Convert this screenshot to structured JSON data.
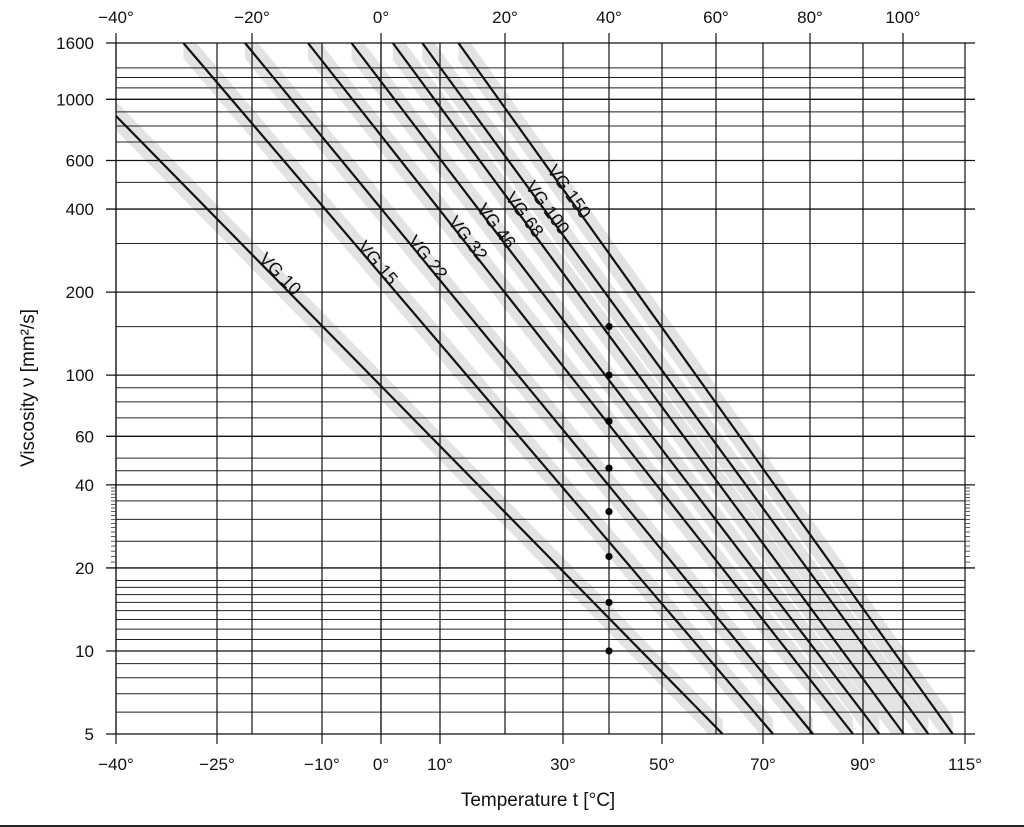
{
  "chart_data": {
    "type": "line",
    "title": "",
    "xlabel": "Temperature t [°C]",
    "ylabel": "Viscosity ν [mm²/s]",
    "y_scale": "log",
    "xlim": [
      -40,
      115
    ],
    "ylim": [
      5,
      1600
    ],
    "grid": true,
    "legend": "labels along lines",
    "x_ticks_bottom": [
      "−40°",
      "−25°",
      "−10°",
      "0°",
      "10°",
      "30°",
      "50°",
      "70°",
      "90°",
      "115°"
    ],
    "x_ticks_top": [
      "−40°",
      "−20°",
      "0°",
      "20°",
      "40°",
      "60°",
      "80°",
      "100°"
    ],
    "y_ticks": [
      "1600",
      "1000",
      "600",
      "400",
      "200",
      "100",
      "60",
      "40",
      "20",
      "10",
      "5"
    ],
    "shaded_bands": "±10% viscosity range of each ISO VG grade",
    "series": [
      {
        "name": "VG 10",
        "kinematic_viscosity_40C": 10,
        "band": [
          9,
          11
        ],
        "x": [
          -40,
          62
        ],
        "y": [
          870,
          5
        ]
      },
      {
        "name": "VG 15",
        "kinematic_viscosity_40C": 15,
        "band": [
          13.5,
          16.5
        ],
        "x": [
          -30,
          72
        ],
        "y": [
          1600,
          5
        ]
      },
      {
        "name": "VG 22",
        "kinematic_viscosity_40C": 22,
        "band": [
          19.8,
          24.2
        ],
        "x": [
          -21,
          80
        ],
        "y": [
          1600,
          5
        ]
      },
      {
        "name": "VG 32",
        "kinematic_viscosity_40C": 32,
        "band": [
          28.8,
          35.2
        ],
        "x": [
          -12,
          88
        ],
        "y": [
          1600,
          5
        ]
      },
      {
        "name": "VG 46",
        "kinematic_viscosity_40C": 46,
        "band": [
          41.4,
          50.6
        ],
        "x": [
          -5,
          94
        ],
        "y": [
          1600,
          5
        ]
      },
      {
        "name": "VG 68",
        "kinematic_viscosity_40C": 68,
        "band": [
          61.2,
          74.8
        ],
        "x": [
          2,
          100
        ],
        "y": [
          1600,
          5
        ]
      },
      {
        "name": "VG 100",
        "kinematic_viscosity_40C": 100,
        "band": [
          90,
          110
        ],
        "x": [
          7,
          106
        ],
        "y": [
          1600,
          5
        ]
      },
      {
        "name": "VG 150",
        "kinematic_viscosity_40C": 150,
        "band": [
          135,
          165
        ],
        "x": [
          13,
          112
        ],
        "y": [
          1600,
          5
        ]
      }
    ],
    "reference_points": {
      "x": 40,
      "y": [
        10,
        15,
        22,
        32,
        46,
        68,
        100,
        150
      ]
    }
  }
}
